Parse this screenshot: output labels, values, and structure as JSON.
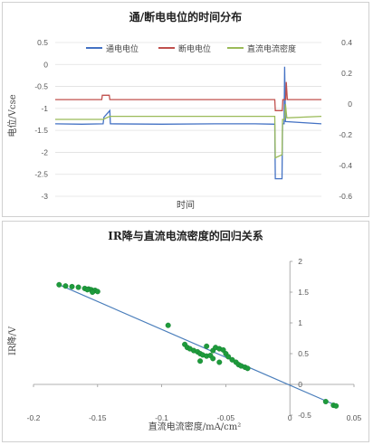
{
  "chart_data": [
    {
      "type": "line",
      "title": "通/断电电位的时间分布",
      "xlabel": "时间",
      "ylabel": "电位/Vcse",
      "ylim": [
        -3,
        0.5
      ],
      "y_ticks": [
        "0.5",
        "0",
        "-0.5",
        "-1",
        "-1.5",
        "-2",
        "-2.5",
        "-3"
      ],
      "y2lim": [
        -0.6,
        0.4
      ],
      "y2_ticks": [
        "0.4",
        "0.2",
        "0",
        "-0.2",
        "-0.4",
        "-0.6"
      ],
      "legend_position": "top",
      "xlim": [
        0,
        100
      ],
      "series": [
        {
          "name": "通电电位",
          "color": "#4472c4",
          "axis": "left",
          "points": [
            [
              0,
              -1.35
            ],
            [
              10,
              -1.36
            ],
            [
              18,
              -1.35
            ],
            [
              18.3,
              -1.2
            ],
            [
              20.5,
              -1.05
            ],
            [
              20.7,
              -1.35
            ],
            [
              40,
              -1.36
            ],
            [
              60,
              -1.35
            ],
            [
              75,
              -1.35
            ],
            [
              82.5,
              -1.36
            ],
            [
              82.7,
              -2.6
            ],
            [
              85.2,
              -2.6
            ],
            [
              85.4,
              -1.35
            ],
            [
              86,
              -1.35
            ],
            [
              86.2,
              -0.05
            ],
            [
              86.5,
              -1.3
            ],
            [
              100,
              -1.35
            ]
          ]
        },
        {
          "name": "断电电位",
          "color": "#c0504d",
          "axis": "left",
          "points": [
            [
              0,
              -0.8
            ],
            [
              17.5,
              -0.8
            ],
            [
              17.7,
              -0.7
            ],
            [
              20.3,
              -0.7
            ],
            [
              20.5,
              -0.8
            ],
            [
              50,
              -0.8
            ],
            [
              82.5,
              -0.8
            ],
            [
              82.7,
              -1.05
            ],
            [
              85.3,
              -1.05
            ],
            [
              85.5,
              -0.8
            ],
            [
              86.6,
              -0.8
            ],
            [
              86.8,
              -0.4
            ],
            [
              87.2,
              -0.8
            ],
            [
              100,
              -0.8
            ]
          ]
        },
        {
          "name": "直流电流密度",
          "color": "#9bbb59",
          "axis": "right",
          "points": [
            [
              0,
              -0.1
            ],
            [
              18,
              -0.1
            ],
            [
              20.5,
              -0.08
            ],
            [
              40,
              -0.08
            ],
            [
              60,
              -0.08
            ],
            [
              82.5,
              -0.08
            ],
            [
              82.7,
              -0.35
            ],
            [
              85.2,
              -0.33
            ],
            [
              85.4,
              -0.1
            ],
            [
              86.2,
              -0.1
            ],
            [
              86.5,
              0.0
            ],
            [
              87,
              -0.09
            ],
            [
              100,
              -0.08
            ]
          ]
        }
      ]
    },
    {
      "type": "scatter",
      "title": "IR降与直流电流密度的回归关系",
      "xlabel": "直流电流密度/mA/cm²",
      "ylabel": "IR降/V",
      "xlim": [
        -0.2,
        0.05
      ],
      "ylim": [
        -0.5,
        2
      ],
      "x_ticks": [
        "-0.2",
        "-0.15",
        "-0.1",
        "-0.05",
        "0",
        "0.05"
      ],
      "y_ticks": [
        "2",
        "1.5",
        "1",
        "0.5",
        "0",
        "-0.5"
      ],
      "point_color": "#1e9b3c",
      "line_color": "#4a7ebb",
      "trendline": [
        [
          -0.18,
          1.62
        ],
        [
          0.036,
          -0.34
        ]
      ],
      "points": [
        [
          -0.18,
          1.62
        ],
        [
          -0.175,
          1.6
        ],
        [
          -0.17,
          1.59
        ],
        [
          -0.165,
          1.58
        ],
        [
          -0.16,
          1.56
        ],
        [
          -0.157,
          1.55
        ],
        [
          -0.155,
          1.54
        ],
        [
          -0.153,
          1.52
        ],
        [
          -0.152,
          1.53
        ],
        [
          -0.15,
          1.51
        ],
        [
          -0.154,
          1.5
        ],
        [
          -0.158,
          1.54
        ],
        [
          -0.095,
          0.96
        ],
        [
          -0.082,
          0.65
        ],
        [
          -0.08,
          0.6
        ],
        [
          -0.078,
          0.58
        ],
        [
          -0.075,
          0.55
        ],
        [
          -0.072,
          0.53
        ],
        [
          -0.07,
          0.5
        ],
        [
          -0.068,
          0.48
        ],
        [
          -0.065,
          0.46
        ],
        [
          -0.062,
          0.47
        ],
        [
          -0.06,
          0.55
        ],
        [
          -0.058,
          0.6
        ],
        [
          -0.055,
          0.58
        ],
        [
          -0.052,
          0.56
        ],
        [
          -0.05,
          0.5
        ],
        [
          -0.048,
          0.45
        ],
        [
          -0.045,
          0.4
        ],
        [
          -0.042,
          0.36
        ],
        [
          -0.04,
          0.32
        ],
        [
          -0.038,
          0.3
        ],
        [
          -0.035,
          0.28
        ],
        [
          -0.033,
          0.26
        ],
        [
          -0.06,
          0.42
        ],
        [
          -0.065,
          0.62
        ],
        [
          -0.07,
          0.38
        ],
        [
          -0.055,
          0.36
        ],
        [
          0.028,
          -0.28
        ],
        [
          0.034,
          -0.34
        ],
        [
          0.036,
          -0.35
        ]
      ]
    }
  ]
}
